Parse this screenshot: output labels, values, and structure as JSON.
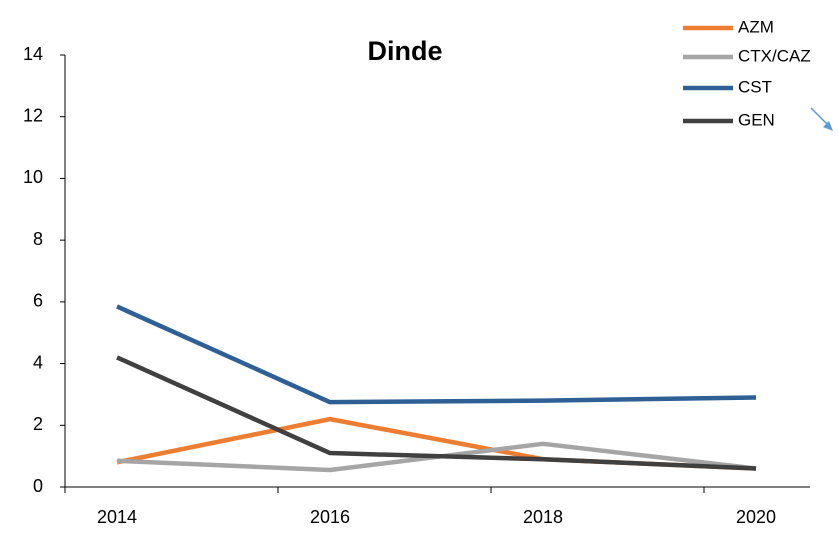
{
  "chart_data": {
    "type": "line",
    "title": "Dinde",
    "categories": [
      "2014",
      "2016",
      "2018",
      "2020"
    ],
    "series": [
      {
        "name": "AZM",
        "color": "#ed7d31",
        "values": [
          0.8,
          2.2,
          0.9,
          0.6
        ]
      },
      {
        "name": "CTX/CAZ",
        "color": "#a5a5a5",
        "values": [
          0.85,
          0.55,
          1.4,
          0.6
        ]
      },
      {
        "name": "CST",
        "color": "#2e6095",
        "values": [
          5.85,
          2.75,
          2.8,
          2.9
        ]
      },
      {
        "name": "GEN",
        "color": "#404040",
        "values": [
          4.2,
          1.1,
          0.9,
          0.6
        ]
      }
    ],
    "ylim": [
      0,
      14
    ],
    "yticks": [
      0,
      2,
      4,
      6,
      8,
      10,
      12,
      14
    ],
    "legend": "upper right",
    "grid": false
  }
}
